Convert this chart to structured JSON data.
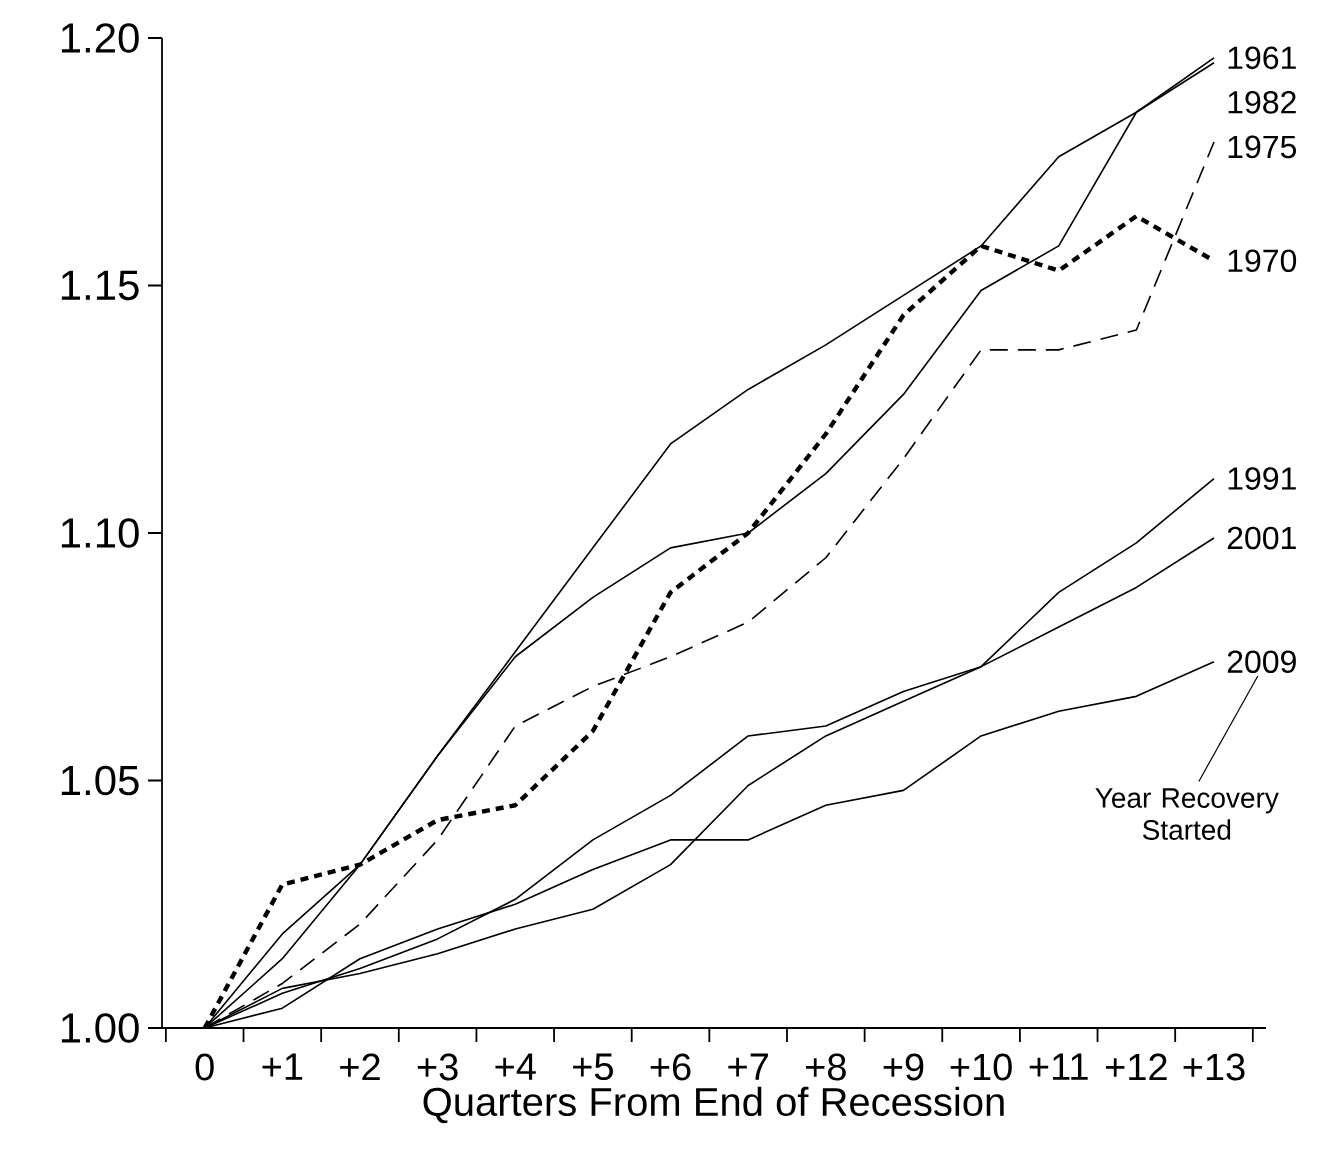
{
  "chart_data": {
    "type": "line",
    "categories": [
      "0",
      "+1",
      "+2",
      "+3",
      "+4",
      "+5",
      "+6",
      "+7",
      "+8",
      "+9",
      "+10",
      "+11",
      "+12",
      "+13"
    ],
    "xlabel": "Quarters From End of Recession",
    "ylim": [
      1.0,
      1.2
    ],
    "yticks": [
      {
        "value": 1.0,
        "label": "1.00"
      },
      {
        "value": 1.05,
        "label": "1.05"
      },
      {
        "value": 1.1,
        "label": "1.10"
      },
      {
        "value": 1.15,
        "label": "1.15"
      },
      {
        "value": 1.2,
        "label": "1.20"
      }
    ],
    "series": [
      {
        "name": "1961",
        "color": "#000000",
        "line_style": "solid",
        "values": [
          1.0,
          1.014,
          1.033,
          1.055,
          1.075,
          1.087,
          1.097,
          1.1,
          1.112,
          1.128,
          1.149,
          1.158,
          1.185,
          1.196
        ]
      },
      {
        "name": "1982",
        "color": "#000000",
        "line_style": "solid",
        "values": [
          1.0,
          1.019,
          1.033,
          1.055,
          1.076,
          1.097,
          1.118,
          1.129,
          1.138,
          1.148,
          1.158,
          1.176,
          1.185,
          1.195
        ]
      },
      {
        "name": "1975",
        "color": "#000000",
        "line_style": "dashed",
        "values": [
          1.0,
          1.009,
          1.021,
          1.038,
          1.061,
          1.069,
          1.075,
          1.082,
          1.095,
          1.115,
          1.137,
          1.137,
          1.141,
          1.179
        ]
      },
      {
        "name": "1970",
        "color": "#000000",
        "line_style": "dotted",
        "values": [
          1.0,
          1.029,
          1.033,
          1.042,
          1.045,
          1.06,
          1.088,
          1.1,
          1.12,
          1.144,
          1.158,
          1.153,
          1.164,
          1.155
        ]
      },
      {
        "name": "1991",
        "color": "#000000",
        "line_style": "solid",
        "values": [
          1.0,
          1.008,
          1.011,
          1.015,
          1.02,
          1.024,
          1.033,
          1.049,
          1.059,
          1.066,
          1.073,
          1.088,
          1.098,
          1.111
        ]
      },
      {
        "name": "2001",
        "color": "#000000",
        "line_style": "solid",
        "values": [
          1.0,
          1.007,
          1.012,
          1.018,
          1.026,
          1.038,
          1.047,
          1.059,
          1.061,
          1.068,
          1.073,
          1.081,
          1.089,
          1.099
        ]
      },
      {
        "name": "2009",
        "color": "#000000",
        "line_style": "solid",
        "values": [
          1.0,
          1.004,
          1.014,
          1.02,
          1.025,
          1.032,
          1.038,
          1.038,
          1.045,
          1.048,
          1.059,
          1.064,
          1.067,
          1.074
        ]
      }
    ],
    "annotations": [
      "Year Recovery Started"
    ]
  }
}
